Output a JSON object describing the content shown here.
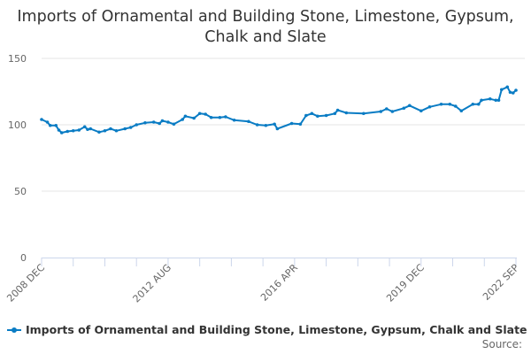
{
  "chart_data": {
    "type": "line",
    "title": "Imports of Ornamental and Building Stone, Limestone, Gypsum, Chalk and Slate",
    "xlabel": "",
    "ylabel": "",
    "ylim": [
      0,
      150
    ],
    "yticks": [
      "0",
      "50",
      "100",
      "150"
    ],
    "xlim": [
      "2008-12",
      "2022-09"
    ],
    "xtick_labels": [
      {
        "date": "2008-12",
        "label": "2008 DEC"
      },
      {
        "date": "2012-08",
        "label": "2012 AUG"
      },
      {
        "date": "2016-04",
        "label": "2016 APR"
      },
      {
        "date": "2019-12",
        "label": "2019 DEC"
      },
      {
        "date": "2022-09",
        "label": "2022 SEP"
      }
    ],
    "grid": true,
    "legend_position": "bottom-left",
    "colors": {
      "series": "#0a7cc4",
      "grid": "#e6e6e6",
      "axis": "#ccd6eb"
    },
    "series": [
      {
        "name": "Imports of Ornamental and Building Stone, Limestone, Gypsum, Chalk and Slate",
        "x": [
          "2008-12",
          "2009-02",
          "2009-03",
          "2009-05",
          "2009-06",
          "2009-07",
          "2009-09",
          "2009-11",
          "2010-01",
          "2010-03",
          "2010-04",
          "2010-05",
          "2010-08",
          "2010-10",
          "2010-12",
          "2011-02",
          "2011-05",
          "2011-07",
          "2011-09",
          "2011-12",
          "2012-03",
          "2012-05",
          "2012-06",
          "2012-08",
          "2012-10",
          "2013-01",
          "2013-02",
          "2013-05",
          "2013-07",
          "2013-09",
          "2013-11",
          "2014-02",
          "2014-04",
          "2014-07",
          "2014-12",
          "2015-03",
          "2015-06",
          "2015-09",
          "2015-10",
          "2016-03",
          "2016-06",
          "2016-08",
          "2016-10",
          "2016-12",
          "2017-03",
          "2017-06",
          "2017-07",
          "2017-10",
          "2018-04",
          "2018-10",
          "2018-12",
          "2019-02",
          "2019-06",
          "2019-08",
          "2019-12",
          "2020-03",
          "2020-07",
          "2020-10",
          "2020-12",
          "2021-02",
          "2021-06",
          "2021-08",
          "2021-09",
          "2021-12",
          "2022-02",
          "2022-03",
          "2022-04",
          "2022-06",
          "2022-07",
          "2022-08",
          "2022-09"
        ],
        "values": [
          104,
          102,
          99.5,
          99.5,
          96,
          94,
          95,
          95.5,
          96,
          98.5,
          96.5,
          97,
          94.5,
          95.5,
          97,
          95.5,
          97,
          98,
          100,
          101.5,
          102,
          101,
          103,
          102,
          100.5,
          104,
          106.5,
          105,
          108.5,
          108,
          105.5,
          105.5,
          106,
          103.5,
          102.5,
          100,
          99.5,
          100.5,
          97,
          101,
          100.5,
          107,
          108.5,
          106.5,
          107,
          108.5,
          111,
          109,
          108.5,
          110,
          112,
          110,
          112.5,
          114.5,
          110.5,
          113.5,
          115.5,
          115.5,
          114,
          110.5,
          115.5,
          115.5,
          118.5,
          119.5,
          118.5,
          118.5,
          126.5,
          128.5,
          124.5,
          124,
          126
        ]
      }
    ]
  },
  "source_label": "Source:"
}
